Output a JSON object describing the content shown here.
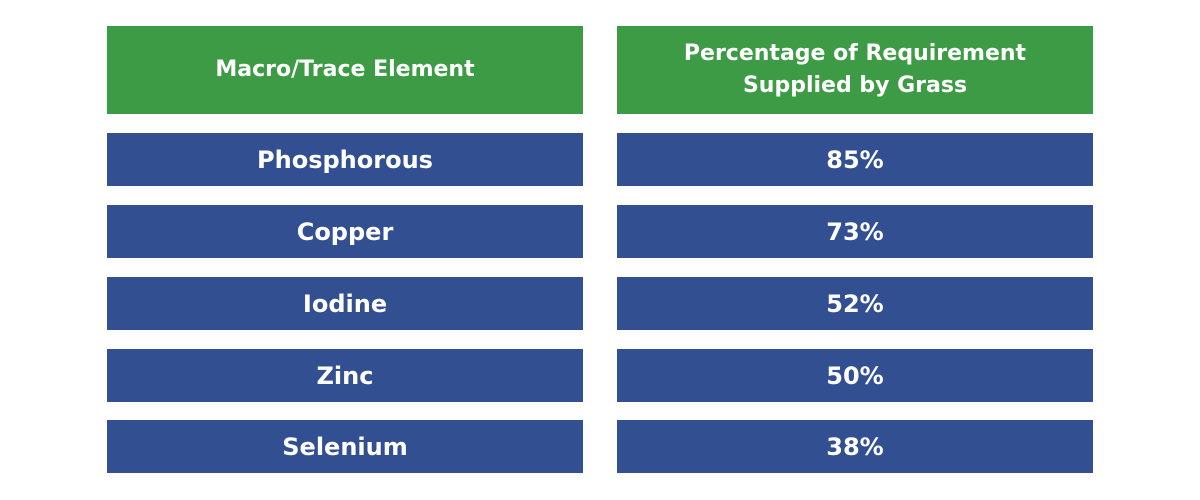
{
  "table": {
    "headers": {
      "element": "Macro/Trace Element",
      "percentage_line1": "Percentage of Requirement",
      "percentage_line2": "Supplied by Grass"
    },
    "rows": [
      {
        "element": "Phosphorous",
        "percentage": "85%"
      },
      {
        "element": "Copper",
        "percentage": "73%"
      },
      {
        "element": "Iodine",
        "percentage": "52%"
      },
      {
        "element": "Zinc",
        "percentage": "50%"
      },
      {
        "element": "Selenium",
        "percentage": "38%"
      }
    ],
    "colors": {
      "header_background": "#3d9b45",
      "row_background": "#324f92",
      "text": "#ffffff"
    }
  }
}
